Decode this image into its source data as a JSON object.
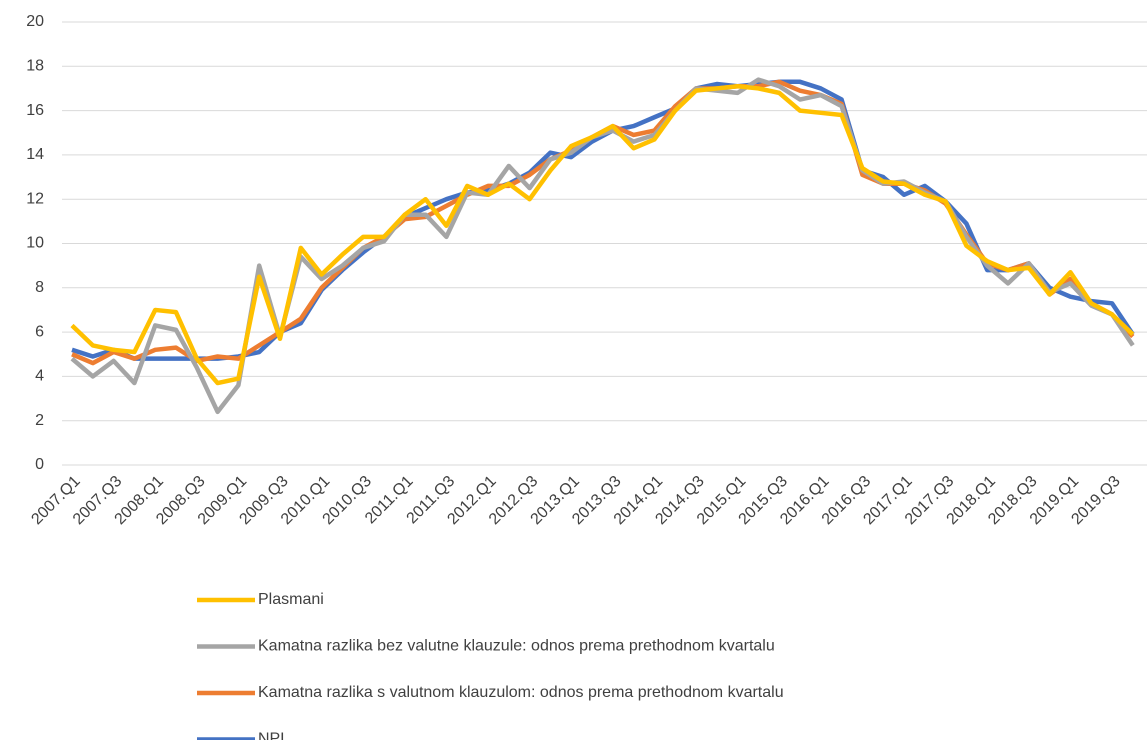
{
  "chart_data": {
    "type": "line",
    "categories": [
      "2007.Q1",
      null,
      "2007.Q3",
      null,
      "2008.Q1",
      null,
      "2008.Q3",
      null,
      "2009.Q1",
      null,
      "2009.Q3",
      null,
      "2010.Q1",
      null,
      "2010.Q3",
      null,
      "2011.Q1",
      null,
      "2011.Q3",
      null,
      "2012.Q1",
      null,
      "2012.Q3",
      null,
      "2013.Q1",
      null,
      "2013.Q3",
      null,
      "2014.Q1",
      null,
      "2014.Q3",
      null,
      "2015.Q1",
      null,
      "2015.Q3",
      null,
      "2016.Q1",
      null,
      "2016.Q3",
      null,
      "2017.Q1",
      null,
      "2017.Q3",
      null,
      "2018.Q1",
      null,
      "2018.Q3",
      null,
      "2019.Q1",
      null,
      "2019.Q3",
      null
    ],
    "series": [
      {
        "name": "Plasmani",
        "color": "#ffc000",
        "values": [
          6.3,
          5.4,
          5.2,
          5.1,
          7.0,
          6.9,
          4.8,
          3.7,
          3.9,
          8.5,
          5.7,
          9.8,
          8.6,
          9.5,
          10.3,
          10.3,
          11.3,
          12.0,
          10.8,
          12.6,
          12.2,
          12.7,
          12.0,
          13.3,
          14.4,
          14.8,
          15.3,
          14.3,
          14.7,
          16.0,
          16.9,
          17.0,
          17.1,
          17.0,
          16.8,
          16.0,
          15.9,
          15.8,
          13.4,
          12.8,
          12.7,
          12.2,
          11.9,
          9.9,
          9.2,
          8.8,
          8.9,
          7.7,
          8.7,
          7.3,
          6.8,
          5.9
        ]
      },
      {
        "name": "Kamatna razlika bez valutne klauzule: odnos prema prethodnom kvartalu",
        "color": "#a5a5a5",
        "values": [
          4.8,
          4.0,
          4.7,
          3.7,
          6.3,
          6.1,
          4.4,
          2.4,
          3.6,
          9.0,
          5.8,
          9.4,
          8.4,
          9.0,
          9.8,
          10.1,
          11.3,
          11.3,
          10.3,
          12.3,
          12.2,
          13.5,
          12.5,
          13.8,
          14.1,
          14.8,
          15.1,
          14.6,
          14.9,
          16.0,
          17.0,
          16.9,
          16.8,
          17.4,
          17.1,
          16.5,
          16.7,
          16.2,
          13.3,
          12.7,
          12.8,
          12.3,
          11.9,
          10.3,
          9.0,
          8.2,
          9.1,
          7.8,
          8.2,
          7.2,
          6.8,
          5.4
        ]
      },
      {
        "name": "Kamatna razlika s valutnom klauzulom: odnos prema prethodnom kvartalu",
        "color": "#ed7d31",
        "values": [
          5.0,
          4.6,
          5.1,
          4.8,
          5.2,
          5.3,
          4.7,
          4.9,
          4.8,
          5.4,
          6.0,
          6.6,
          8.0,
          8.9,
          9.8,
          10.3,
          11.1,
          11.2,
          11.7,
          12.2,
          12.6,
          12.6,
          13.1,
          13.8,
          14.2,
          14.8,
          15.3,
          14.9,
          15.1,
          16.2,
          17.0,
          17.0,
          17.1,
          17.1,
          17.3,
          16.9,
          16.7,
          16.3,
          13.1,
          12.7,
          12.7,
          12.4,
          11.8,
          10.4,
          9.1,
          8.8,
          9.1,
          7.7,
          8.4,
          7.3,
          6.8,
          5.8
        ]
      },
      {
        "name": "NPL",
        "color": "#4472c4",
        "values": [
          5.2,
          4.9,
          5.2,
          4.8,
          4.8,
          4.8,
          4.8,
          4.8,
          4.9,
          5.1,
          6.0,
          6.4,
          7.9,
          8.8,
          9.6,
          10.3,
          11.2,
          11.6,
          12.0,
          12.3,
          12.4,
          12.7,
          13.2,
          14.1,
          13.9,
          14.6,
          15.1,
          15.3,
          15.7,
          16.1,
          17.0,
          17.2,
          17.1,
          17.2,
          17.3,
          17.3,
          17.0,
          16.5,
          13.3,
          13.0,
          12.2,
          12.6,
          11.9,
          10.9,
          8.8,
          8.8,
          9.1,
          8.0,
          7.6,
          7.4,
          7.3,
          5.9
        ]
      }
    ],
    "ylim": [
      0,
      20
    ],
    "yticks": [
      0,
      2,
      4,
      6,
      8,
      10,
      12,
      14,
      16,
      18,
      20
    ],
    "grid": true,
    "legend": "bottom"
  }
}
